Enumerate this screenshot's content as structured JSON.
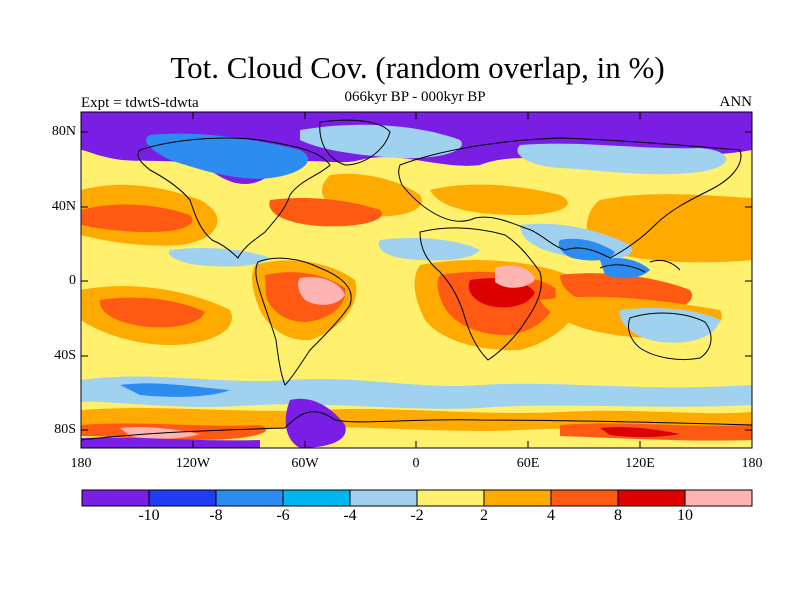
{
  "title": "Tot. Cloud Cov. (random overlap, in %)",
  "subtitle": "066kyr BP - 000kyr BP",
  "left_label": "Expt = tdwtS-tdwta",
  "right_label": "ANN",
  "lat_ticks": [
    "80N",
    "40N",
    "0",
    "40S",
    "80S"
  ],
  "lon_ticks": [
    "180",
    "120W",
    "60W",
    "0",
    "60E",
    "120E",
    "180"
  ],
  "colorbar": {
    "labels": [
      "-10",
      "-8",
      "-6",
      "-4",
      "-2",
      "2",
      "4",
      "8",
      "10"
    ],
    "colors": [
      "#7a1ee6",
      "#1e3cf0",
      "#2d8cf0",
      "#00b4f0",
      "#a0d2f0",
      "#fff06e",
      "#ffaa00",
      "#ff5a14",
      "#dc0000",
      "#ffb4b4"
    ]
  },
  "map_colors": {
    "ocean_base": "#fff06e",
    "land_outline": "#000000"
  }
}
